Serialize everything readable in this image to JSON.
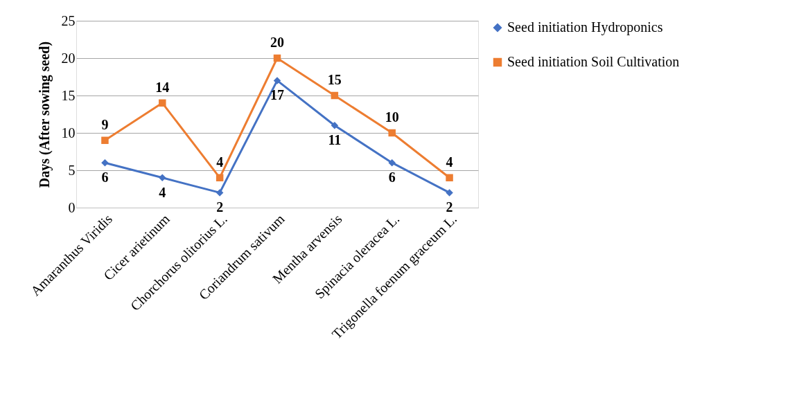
{
  "chart_data": {
    "type": "line",
    "ylabel": "Days (After sowing seed)",
    "categories": [
      "Amaranthus Viridis",
      "Cicer arietinum",
      "Chorchorus olitorius L.",
      "Coriandrum sativum",
      "Mentha arvensis",
      "Spinacia oleracea L.",
      "Trigonella foenum graceum L."
    ],
    "series": [
      {
        "name": "Seed initiation Hydroponics",
        "color": "#4472c4",
        "marker": "diamond",
        "values": [
          6,
          4,
          2,
          17,
          11,
          6,
          2
        ]
      },
      {
        "name": "Seed initiation Soil Cultivation",
        "color": "#ed7d31",
        "marker": "square",
        "values": [
          9,
          14,
          4,
          20,
          15,
          10,
          4
        ]
      }
    ],
    "ylim": [
      0,
      25
    ],
    "yticks": [
      0,
      5,
      10,
      15,
      20,
      25
    ],
    "grid": "y",
    "legend": "right",
    "data_labels": true
  }
}
